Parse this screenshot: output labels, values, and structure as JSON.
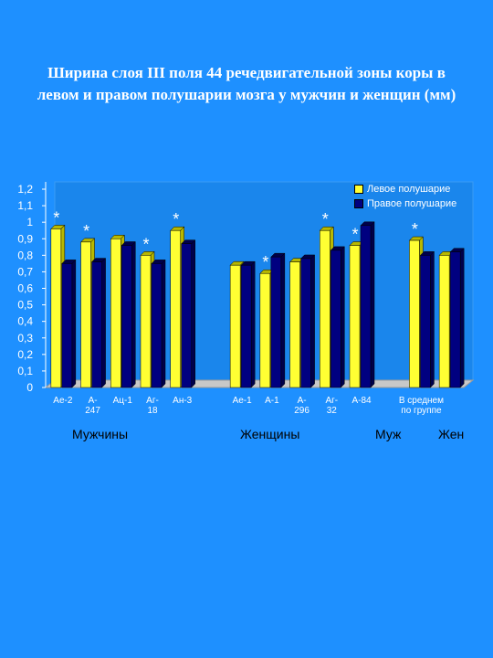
{
  "title": {
    "line1": "Ширина слоя III  поля 44 речедвигательной зоны коры в",
    "line2": "левом и правом полушарии мозга у мужчин и женщин (мм)"
  },
  "legend": {
    "left": "Левое полушарие",
    "right": "Правое полушарие"
  },
  "groups": {
    "men": "Мужчины",
    "women": "Женщины",
    "men_short": "Муж",
    "women_short": "Жен"
  },
  "colors": {
    "background": "#1e90ff",
    "left": "#ffff33",
    "right": "#000080",
    "wall": "#1a86ec",
    "floor": "#c8c8c8",
    "axis_text": "#ffffff"
  },
  "chart_data": {
    "type": "bar",
    "ylim": [
      0,
      1.2
    ],
    "yticks": [
      "0",
      "0,1",
      "0,2",
      "0,3",
      "0,4",
      "0,5",
      "0,6",
      "0,7",
      "0,8",
      "0,9",
      "1",
      "1,1",
      "1,2"
    ],
    "categories": [
      [
        "Ае-2"
      ],
      [
        "А-",
        "247"
      ],
      [
        "Ац-1"
      ],
      [
        "Аг-",
        "18"
      ],
      [
        "Ан-3"
      ],
      [
        ""
      ],
      [
        "Ае-1"
      ],
      [
        "А-1"
      ],
      [
        "А-",
        "296"
      ],
      [
        "Аг-",
        "32"
      ],
      [
        "А-84"
      ],
      [
        ""
      ],
      [
        "В среднем",
        "по группе"
      ],
      [
        ""
      ]
    ],
    "series": [
      {
        "name": "Левое полушарие",
        "values": [
          0.96,
          0.88,
          0.9,
          0.8,
          0.95,
          null,
          0.74,
          0.69,
          0.76,
          0.95,
          0.86,
          null,
          0.89,
          0.8
        ]
      },
      {
        "name": "Правое полушарие",
        "values": [
          0.75,
          0.76,
          0.86,
          0.75,
          0.87,
          null,
          0.74,
          0.79,
          0.78,
          0.83,
          0.98,
          null,
          0.8,
          0.82
        ]
      }
    ],
    "stars": [
      "*",
      "*",
      "",
      "*",
      "*",
      "",
      "",
      "*",
      "",
      "*",
      "*",
      "",
      "*",
      ""
    ],
    "grid": false,
    "legend_position": "top-right"
  }
}
